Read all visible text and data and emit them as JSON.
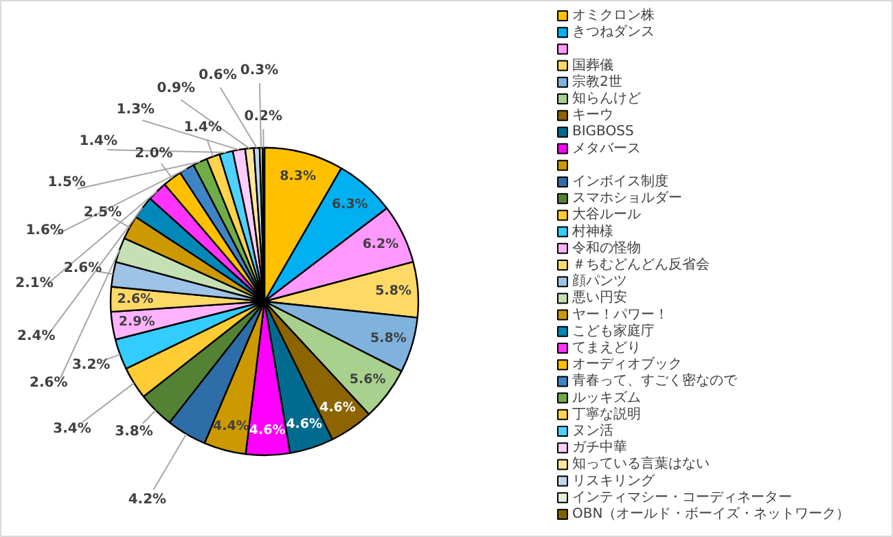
{
  "chart_data": {
    "type": "pie",
    "categories": [
      "オミクロン株",
      "きつねダンス",
      null,
      "国葬儀",
      "宗教2世",
      "知らんけど",
      "キーウ",
      "BIGBOSS",
      "メタバース",
      null,
      "インボイス制度",
      "スマホショルダー",
      "大谷ルール",
      "村神様",
      "令和の怪物",
      "＃ちむどんどん反省会",
      "顔パンツ",
      "悪い円安",
      "ヤー！パワー！",
      "こども家庭庁",
      "てまえどり",
      "オーディオブック",
      "青春って、すごく密なので",
      "ルッキズム",
      "丁寧な説明",
      "ヌン活",
      "ガチ中華",
      "知っている言葉はない",
      "リスキリング",
      "インティマシー・コーディネーター",
      "OBN（オールド・ボーイズ・ネットワーク）"
    ],
    "values": [
      8.3,
      6.3,
      6.2,
      5.8,
      5.8,
      5.6,
      4.6,
      4.6,
      4.6,
      4.4,
      4.2,
      3.8,
      3.4,
      3.2,
      2.9,
      2.6,
      2.6,
      2.6,
      2.5,
      2.4,
      2.1,
      2.0,
      1.6,
      1.5,
      1.4,
      1.4,
      1.3,
      0.9,
      0.6,
      0.3,
      0.2
    ],
    "value_labels": [
      "8.3%",
      "6.3%",
      "6.2%",
      "5.8%",
      "5.8%",
      "5.6%",
      "4.6%",
      "4.6%",
      "4.6%",
      "4.4%",
      "4.2%",
      "3.8%",
      "3.4%",
      "3.2%",
      "2.9%",
      "2.6%",
      "2.6%",
      "2.6%",
      "2.5%",
      "2.4%",
      "2.1%",
      "2.0%",
      "1.6%",
      "1.5%",
      "1.4%",
      "1.4%",
      "1.3%",
      "0.9%",
      "0.6%",
      "0.3%",
      "0.2%"
    ],
    "colors": [
      "#ffc000",
      "#00b0f0",
      "#ff99ff",
      "#ffd966",
      "#7fb2dd",
      "#a9d18e",
      "#8c6400",
      "#006b8f",
      "#ff00ff",
      "#cc9900",
      "#2e6ea8",
      "#548235",
      "#ffcc33",
      "#33ccff",
      "#ffb3ff",
      "#ffd966",
      "#9dc3e6",
      "#c5e0b4",
      "#cc9900",
      "#0088b8",
      "#ff33ff",
      "#ffc000",
      "#3d85c6",
      "#70ad47",
      "#ffd34d",
      "#4dd2ff",
      "#ffccff",
      "#ffe699",
      "#bdd7ee",
      "#e2f0d9",
      "#7f6000"
    ],
    "legend": "right"
  }
}
